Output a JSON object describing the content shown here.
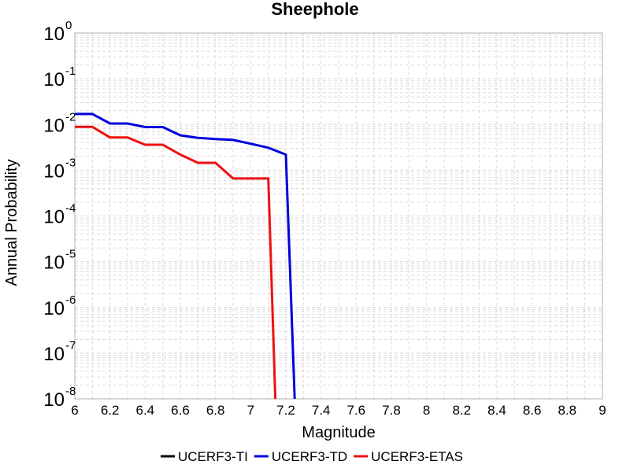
{
  "chart_data": {
    "type": "line",
    "title": "Sheephole",
    "xlabel": "Magnitude",
    "ylabel": "Annual Probability",
    "xlim": [
      6,
      9
    ],
    "ylim": [
      1e-08,
      1
    ],
    "yscale": "log",
    "grid": true,
    "legend_position": "bottom",
    "x_ticks": [
      "6",
      "6.2",
      "6.4",
      "6.6",
      "6.8",
      "7",
      "7.2",
      "7.4",
      "7.6",
      "7.8",
      "8",
      "8.2",
      "8.4",
      "8.6",
      "8.8",
      "9"
    ],
    "y_ticks": [
      {
        "base": "10",
        "exp": "0",
        "value": 1
      },
      {
        "base": "10",
        "exp": "-1",
        "value": 0.1
      },
      {
        "base": "10",
        "exp": "-2",
        "value": 0.01
      },
      {
        "base": "10",
        "exp": "-3",
        "value": 0.001
      },
      {
        "base": "10",
        "exp": "-4",
        "value": 0.0001
      },
      {
        "base": "10",
        "exp": "-5",
        "value": 1e-05
      },
      {
        "base": "10",
        "exp": "-6",
        "value": 1e-06
      },
      {
        "base": "10",
        "exp": "-7",
        "value": 1e-07
      },
      {
        "base": "10",
        "exp": "-8",
        "value": 1e-08
      }
    ],
    "series": [
      {
        "name": "UCERF3-TI",
        "color": "#000000",
        "points": []
      },
      {
        "name": "UCERF3-TD",
        "color": "#0000dd",
        "points": [
          [
            6.0,
            0.017
          ],
          [
            6.1,
            0.017
          ],
          [
            6.2,
            0.0105
          ],
          [
            6.3,
            0.0105
          ],
          [
            6.4,
            0.0088
          ],
          [
            6.5,
            0.0088
          ],
          [
            6.6,
            0.0058
          ],
          [
            6.7,
            0.0051
          ],
          [
            6.8,
            0.0048
          ],
          [
            6.9,
            0.0046
          ],
          [
            7.0,
            0.0038
          ],
          [
            7.1,
            0.0031
          ],
          [
            7.2,
            0.0022
          ],
          [
            7.25,
            1e-08
          ]
        ]
      },
      {
        "name": "UCERF3-ETAS",
        "color": "#ee1111",
        "points": [
          [
            6.0,
            0.0089
          ],
          [
            6.1,
            0.0089
          ],
          [
            6.2,
            0.0052
          ],
          [
            6.3,
            0.0052
          ],
          [
            6.4,
            0.0036
          ],
          [
            6.5,
            0.0036
          ],
          [
            6.6,
            0.0022
          ],
          [
            6.7,
            0.00145
          ],
          [
            6.8,
            0.00145
          ],
          [
            6.9,
            0.00066
          ],
          [
            7.0,
            0.00066
          ],
          [
            7.1,
            0.00066
          ],
          [
            7.14,
            1e-08
          ]
        ]
      }
    ]
  }
}
